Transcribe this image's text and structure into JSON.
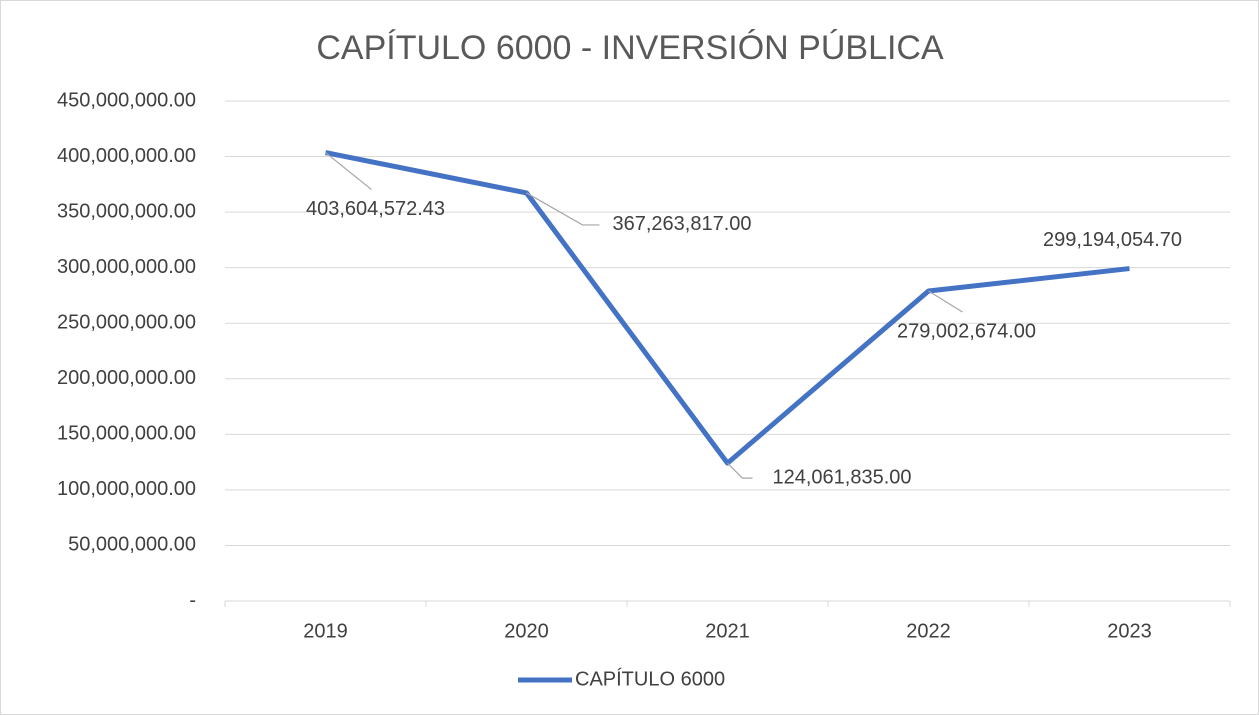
{
  "chart_data": {
    "type": "line",
    "title": "CAPÍTULO 6000 - INVERSIÓN PÚBLICA",
    "categories": [
      "2019",
      "2020",
      "2021",
      "2022",
      "2023"
    ],
    "series": [
      {
        "name": "CAPÍTULO 6000",
        "color": "#4472c4",
        "values": [
          403604572.43,
          367263817.0,
          124061835.0,
          279002674.0,
          299194054.7
        ],
        "value_labels": [
          "403,604,572.43",
          "367,263,817.00",
          "124,061,835.00",
          "279,002,674.00",
          "299,194,054.70"
        ]
      }
    ],
    "ylim": [
      0,
      450000000
    ],
    "yticks": [
      {
        "value": 0,
        "label": "-"
      },
      {
        "value": 50000000,
        "label": "50,000,000.00"
      },
      {
        "value": 100000000,
        "label": "100,000,000.00"
      },
      {
        "value": 150000000,
        "label": "150,000,000.00"
      },
      {
        "value": 200000000,
        "label": "200,000,000.00"
      },
      {
        "value": 250000000,
        "label": "250,000,000.00"
      },
      {
        "value": 300000000,
        "label": "300,000,000.00"
      },
      {
        "value": 350000000,
        "label": "350,000,000.00"
      },
      {
        "value": 400000000,
        "label": "400,000,000.00"
      },
      {
        "value": 450000000,
        "label": "450,000,000.00"
      }
    ],
    "grid": true,
    "legend": "bottom"
  }
}
